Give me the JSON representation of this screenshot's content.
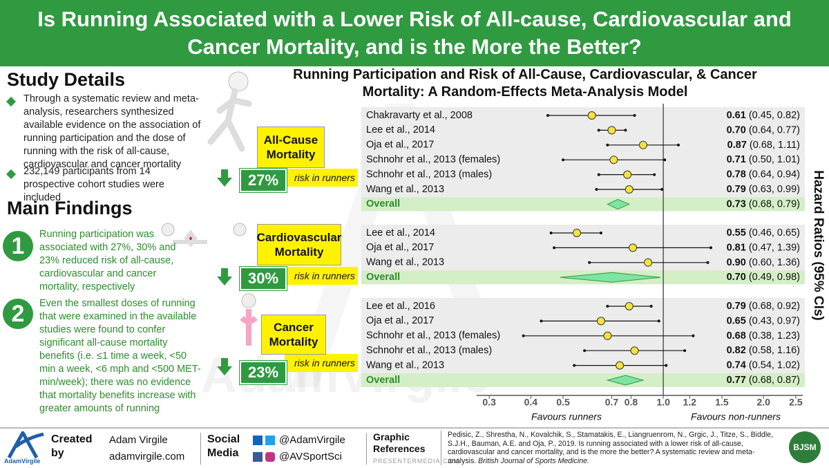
{
  "header": {
    "title": "Is Running Associated with a Lower Risk of All-cause, Cardiovascular and Cancer Mortality, and is the More the Better?"
  },
  "study_details": {
    "heading": "Study Details",
    "bullets": [
      "Through a systematic review and meta-analysis, researchers synthesized available evidence on the association of running participation and the dose of running with the risk of all-cause, cardiovascular and cancer mortality",
      "232,149 participants from 14 prospective cohort studies were included"
    ]
  },
  "main_findings": {
    "heading": "Main Findings",
    "items": [
      {
        "number": "1",
        "text": "Running participation was associated with 27%, 30% and 23% reduced risk of all-cause, cardiovascular and cancer mortality, respectively"
      },
      {
        "number": "2",
        "text": "Even the smallest doses of running that were examined in the available studies were found to confer significant all-cause mortality benefits (i.e. ≤1 time a week, <50 min a week, <6 mph and <500 MET-min/week); there was no evidence that mortality benefits increase with greater amounts of running"
      }
    ]
  },
  "outcomes": [
    {
      "label": "All-Cause Mortality",
      "reduction": "27%",
      "note": "risk in runners"
    },
    {
      "label": "Cardiovascular Mortality",
      "reduction": "30%",
      "note": "risk in runners"
    },
    {
      "label": "Cancer Mortality",
      "reduction": "23%",
      "note": "risk in runners"
    }
  ],
  "watermark": "AdamVirgile",
  "chart_data": {
    "type": "forest",
    "title": "Running Participation and Risk of All-Cause, Cardiovascular, & Cancer Mortality: A Random-Effects Meta-Analysis Model",
    "ylabel": "Hazard Ratios (95% CIs)",
    "xlabel_left": "Favours runners",
    "xlabel_right": "Favours non-runners",
    "log": true,
    "xlim": [
      0.25,
      2.7
    ],
    "reference": 1,
    "xticks": [
      0.3,
      0.4,
      0.5,
      0.7,
      0.8,
      {
        "value": 1,
        "label": "1.0"
      },
      1.2,
      1.5,
      {
        "value": 2,
        "label": "2.0"
      },
      2.5
    ],
    "marker_color": "#f5e23c",
    "diamond_color": "#7fe3a2",
    "groups": [
      {
        "studies": [
          "Chakravarty et al., 2008",
          "Lee et al., 2014",
          "Oja et al., 2017",
          "Schnohr et al., 2013 (females)",
          "Schnohr et al., 2013 (males)",
          "Wang et al., 2013"
        ],
        "values": [
          0.61,
          0.7,
          0.87,
          0.71,
          0.78,
          0.79
        ],
        "value_labels": [
          "0.61",
          "0.70",
          "0.87",
          "0.71",
          "0.78",
          "0.79"
        ],
        "ci_low": [
          0.45,
          0.64,
          0.68,
          0.5,
          0.64,
          0.63
        ],
        "ci_high": [
          0.82,
          0.77,
          1.11,
          1.01,
          0.94,
          0.99
        ],
        "ci_labels": [
          "(0.45, 0.82)",
          "(0.64, 0.77)",
          "(0.68, 1.11)",
          "(0.50, 1.01)",
          "(0.64, 0.94)",
          "(0.63, 0.99)"
        ],
        "overall": {
          "label": "Overall",
          "value": 0.73,
          "value_label": "0.73",
          "ci_low": 0.68,
          "ci_high": 0.79,
          "ci_label": "(0.68, 0.79)"
        }
      },
      {
        "studies": [
          "Lee et al., 2014",
          "Oja et al., 2017",
          "Wang et al., 2013"
        ],
        "values": [
          0.55,
          0.81,
          0.9
        ],
        "value_labels": [
          "0.55",
          "0.81",
          "0.90"
        ],
        "ci_low": [
          0.46,
          0.47,
          0.6
        ],
        "ci_high": [
          0.65,
          1.39,
          1.36
        ],
        "ci_labels": [
          "(0.46, 0.65)",
          "(0.47, 1.39)",
          "(0.60, 1.36)"
        ],
        "overall": {
          "label": "Overall",
          "value": 0.7,
          "value_label": "0.70",
          "ci_low": 0.49,
          "ci_high": 0.98,
          "ci_label": "(0.49, 0.98)"
        }
      },
      {
        "studies": [
          "Lee et al., 2016",
          "Oja et al., 2017",
          "Schnohr et al., 2013 (females)",
          "Schnohr et al., 2013 (males)",
          "Wang et al., 2013"
        ],
        "values": [
          0.79,
          0.65,
          0.68,
          0.82,
          0.74
        ],
        "value_labels": [
          "0.79",
          "0.65",
          "0.68",
          "0.82",
          "0.74"
        ],
        "ci_low": [
          0.68,
          0.43,
          0.38,
          0.58,
          0.54
        ],
        "ci_high": [
          0.92,
          0.97,
          1.23,
          1.16,
          1.02
        ],
        "ci_labels": [
          "(0.68, 0.92)",
          "(0.43, 0.97)",
          "(0.38, 1.23)",
          "(0.58, 1.16)",
          "(0.54, 1.02)"
        ],
        "overall": {
          "label": "Overall",
          "value": 0.77,
          "value_label": "0.77",
          "ci_low": 0.68,
          "ci_high": 0.87,
          "ci_label": "(0.68, 0.87)"
        }
      }
    ]
  },
  "footer": {
    "logo": "AdamVirgile",
    "created_label": "Created by",
    "name": "Adam Virgile",
    "site": "adamvirgile.com",
    "social_label": "Social Media",
    "twitter": "@AdamVirgile",
    "instagram": "@AVSportSci",
    "graphic_label": "Graphic References",
    "graphic_source": "PRESENTERMEDIA.COM",
    "citation": "Pedisic, Z., Shrestha, N., Kovalchik, S., Stamatakis, E., Liangruenrom, N., Grgic, J., Titze, S., Biddle, S.J.H., Bauman, A.E. and Oja, P., 2019. Is running associated with a lower risk of all-cause, cardiovascular and cancer mortality, and is the more the better? A systematic review and meta-analysis.",
    "journal": "British Journal of Sports Medicine.",
    "badge": "BJSM"
  }
}
